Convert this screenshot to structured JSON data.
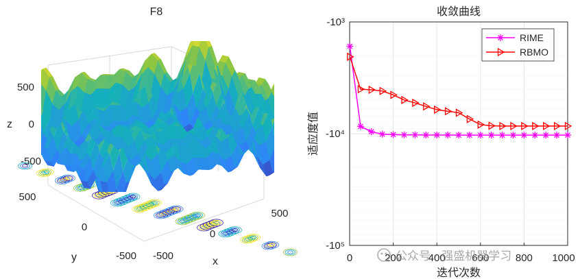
{
  "chart_data": [
    {
      "type": "surface3d",
      "title": "F8",
      "xlabel": "x",
      "ylabel": "y",
      "zlabel": "z",
      "x_ticks": [
        "-500",
        "0",
        "500"
      ],
      "y_ticks": [
        "-500",
        "0",
        "500"
      ],
      "z_ticks": [
        "500",
        "0",
        "-500"
      ],
      "xlim": [
        -500,
        500
      ],
      "ylim": [
        -500,
        500
      ],
      "zlim": [
        -800,
        800
      ],
      "colormap": "parula",
      "contour_projection": true
    },
    {
      "type": "line",
      "title": "收敛曲线",
      "xlabel": "迭代次数",
      "ylabel": "适应度值",
      "xlim": [
        0,
        1000
      ],
      "x_ticks": [
        "0",
        "200",
        "400",
        "600",
        "800",
        "1000"
      ],
      "y_scale": "log-negative",
      "y_ticks": [
        "-10³",
        "-10⁴",
        "-10⁵"
      ],
      "y_tick_values": [
        -1000,
        -10000,
        -100000
      ],
      "grid": true,
      "legend_position": "top-right",
      "series": [
        {
          "name": "RIME",
          "color": "#ff00ff",
          "marker": "asterisk",
          "x": [
            1,
            50,
            100,
            150,
            200,
            250,
            300,
            350,
            400,
            450,
            500,
            550,
            600,
            650,
            700,
            750,
            800,
            850,
            900,
            950,
            1000
          ],
          "y": [
            -1650,
            -8600,
            -9600,
            -10100,
            -10200,
            -10250,
            -10250,
            -10280,
            -10280,
            -10280,
            -10300,
            -10300,
            -10300,
            -10300,
            -10300,
            -10300,
            -10300,
            -10300,
            -10300,
            -10300,
            -10300
          ]
        },
        {
          "name": "RBMO",
          "color": "#ff0000",
          "marker": "triangle-right",
          "x": [
            1,
            50,
            100,
            150,
            200,
            250,
            300,
            350,
            400,
            450,
            500,
            550,
            600,
            650,
            700,
            750,
            800,
            850,
            900,
            950,
            1000
          ],
          "y": [
            -2050,
            -4000,
            -4050,
            -4150,
            -4500,
            -5000,
            -5300,
            -5700,
            -6100,
            -6300,
            -6500,
            -7400,
            -8300,
            -8500,
            -8550,
            -8550,
            -8550,
            -8550,
            -8550,
            -8550,
            -8550
          ]
        }
      ]
    }
  ],
  "watermark": "公众号 · 强盛机器学习"
}
